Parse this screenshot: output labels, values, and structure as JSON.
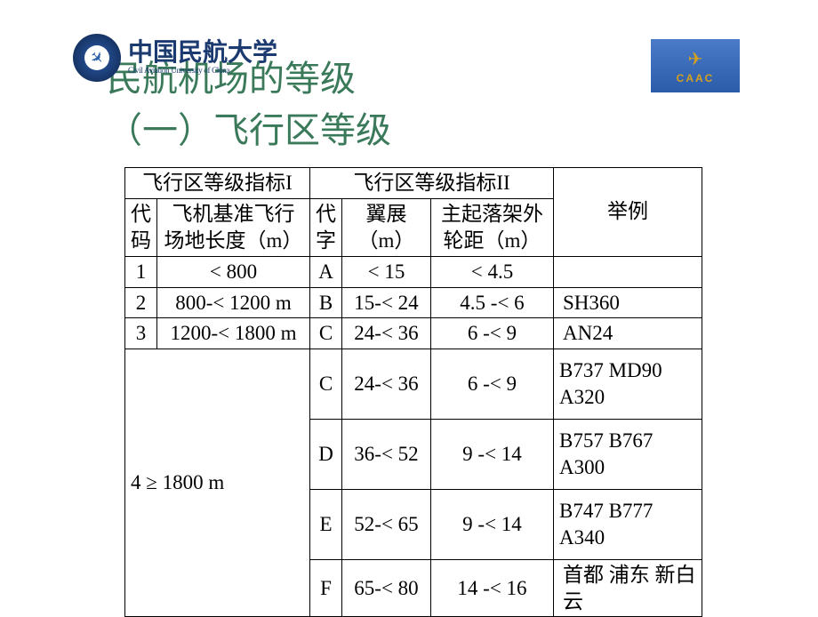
{
  "branding": {
    "university_cn": "中国民航大学",
    "university_en": "Civil Aviation University of China",
    "right_logo_label": "CAAC"
  },
  "title": {
    "line1": "民航机场的等级",
    "line2": "（一）飞行区等级"
  },
  "table": {
    "headers": {
      "group1": "飞行区等级指标I",
      "group2": "飞行区等级指标II",
      "examples": "举例",
      "code1": "代码",
      "ref_len": "飞机基准飞行场地长度（m）",
      "code2": "代字",
      "wingspan": "翼展（m）",
      "gear_track": "主起落架外轮距（m）"
    },
    "rows": [
      {
        "c1": "1",
        "len": "< 800",
        "c2": "A",
        "ws": "< 15",
        "gt": "< 4.5",
        "ex": ""
      },
      {
        "c1": "2",
        "len": "800-< 1200 m",
        "c2": "B",
        "ws": "15-< 24",
        "gt": "4.5 -< 6",
        "ex": "SH360"
      },
      {
        "c1": "3",
        "len": "1200-< 1800 m",
        "c2": "C",
        "ws": "24-< 36",
        "gt": "6 -< 9",
        "ex": "AN24"
      }
    ],
    "row4": {
      "code_len": "4 ≥ 1800 m",
      "sub": [
        {
          "c2": "C",
          "ws": "24-< 36",
          "gt": "6 -< 9",
          "ex": "B737 MD90 A320"
        },
        {
          "c2": "D",
          "ws": "36-< 52",
          "gt": "9 -< 14",
          "ex": "B757 B767 A300"
        },
        {
          "c2": "E",
          "ws": "52-< 65",
          "gt": "9 -< 14",
          "ex": "B747 B777 A340"
        },
        {
          "c2": "F",
          "ws": "65-< 80",
          "gt": "14 -< 16",
          "ex": "首都 浦东 新白云"
        }
      ]
    }
  },
  "style": {
    "title_color": "#3a7a5a",
    "title_fontsize": 40,
    "body_fontsize": 23,
    "border_color": "#000000",
    "bg_color": "#ffffff",
    "logo_blue": "#2a5caa",
    "caac_gold": "#d4a020"
  }
}
